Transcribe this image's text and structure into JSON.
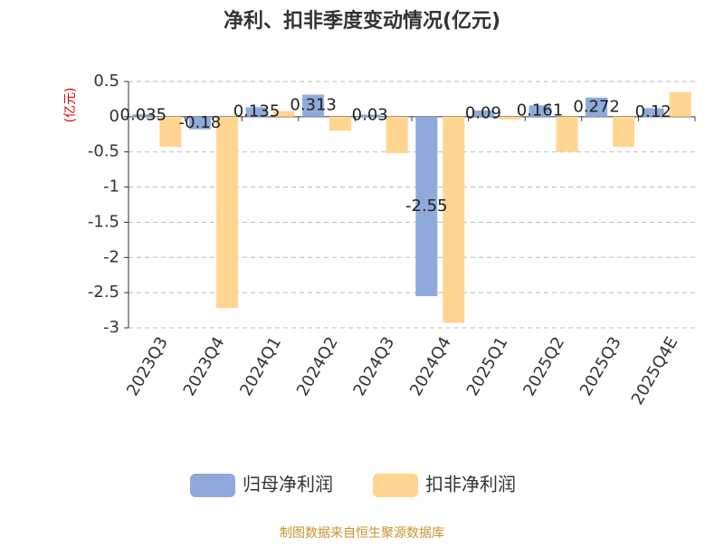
{
  "chart_data": {
    "type": "bar",
    "title": "净利、扣非季度变动情况(亿元)",
    "y_label": "(亿元)",
    "source": "制图数据来自恒生聚源数据库",
    "categories": [
      "2023Q3",
      "2023Q4",
      "2024Q1",
      "2024Q2",
      "2024Q3",
      "2024Q4",
      "2025Q1",
      "2025Q2",
      "2025Q3",
      "2025Q4E"
    ],
    "series": [
      {
        "name": "归母净利润",
        "color": "#8eaadb",
        "values": [
          0.035,
          -0.18,
          0.135,
          0.313,
          0.03,
          -2.55,
          0.09,
          0.161,
          0.272,
          0.12
        ],
        "show_labels": true
      },
      {
        "name": "扣非净利润",
        "color": "#ffd591",
        "values": [
          -0.43,
          -2.72,
          0.08,
          -0.2,
          -0.52,
          -2.93,
          -0.04,
          -0.5,
          -0.43,
          0.35
        ],
        "show_labels": false
      }
    ],
    "ylim": [
      -3,
      0.5
    ],
    "yticks": [
      0.5,
      0,
      -0.5,
      -1,
      -1.5,
      -2,
      -2.5,
      -3
    ],
    "grid": true,
    "legend": "bottom"
  }
}
